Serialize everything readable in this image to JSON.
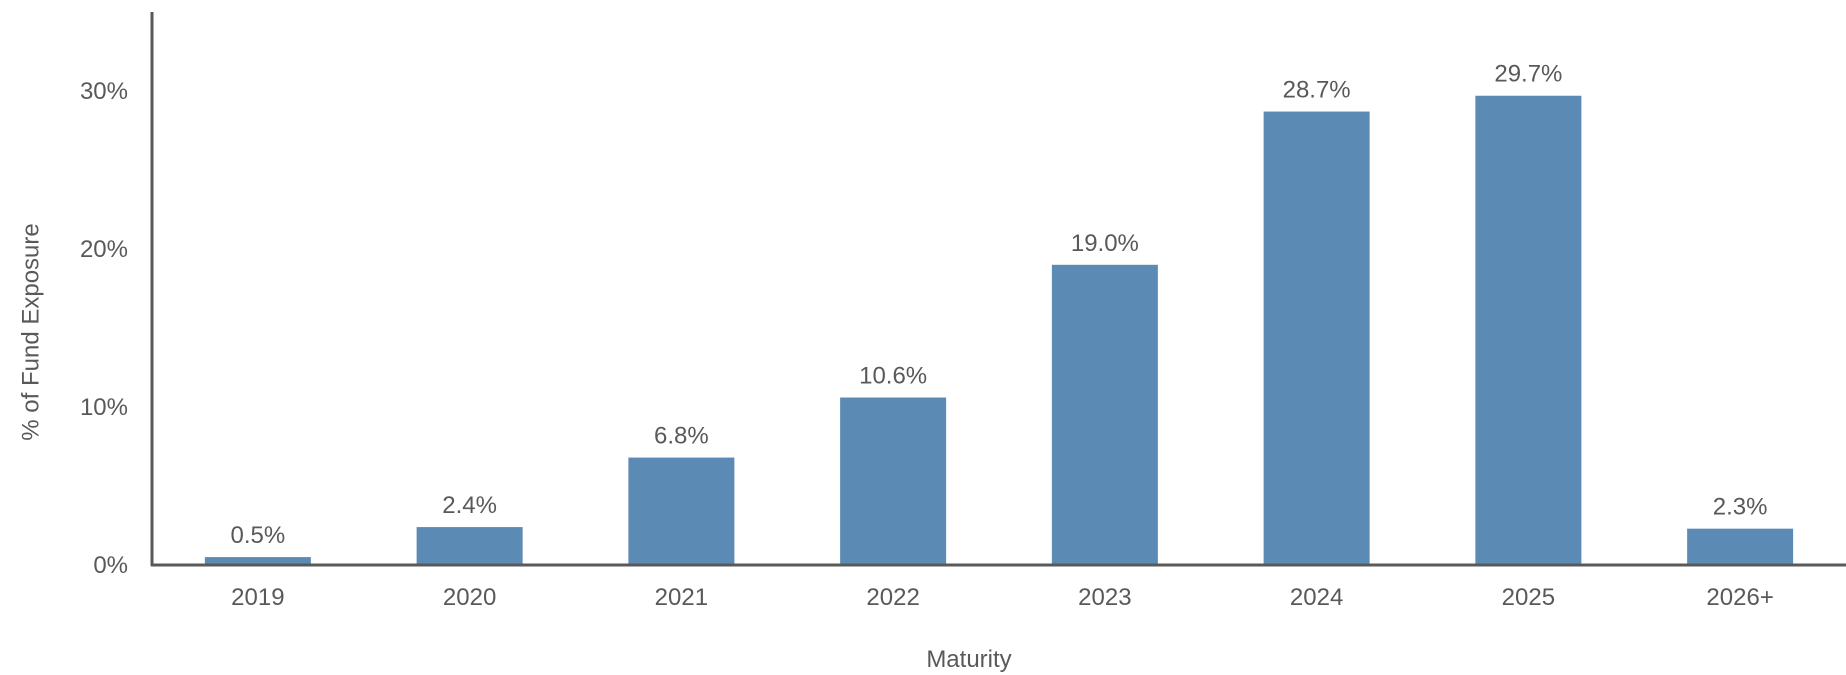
{
  "chart_data": {
    "type": "bar",
    "categories": [
      "2019",
      "2020",
      "2021",
      "2022",
      "2023",
      "2024",
      "2025",
      "2026+"
    ],
    "values": [
      0.5,
      2.4,
      6.8,
      10.6,
      19.0,
      28.7,
      29.7,
      2.3
    ],
    "data_labels": [
      "0.5%",
      "2.4%",
      "6.8%",
      "10.6%",
      "19.0%",
      "28.7%",
      "29.7%",
      "2.3%"
    ],
    "xlabel": "Maturity",
    "ylabel": "% of Fund Exposure",
    "ylim": [
      0,
      30
    ],
    "y_ticks": [
      0,
      10,
      20,
      30
    ],
    "y_tick_labels": [
      "0%",
      "10%",
      "20%",
      "30%"
    ],
    "grid": false,
    "legend": "none",
    "colors": {
      "bar": "#5B8BB4",
      "axis": "#595959",
      "text": "#595959"
    }
  }
}
